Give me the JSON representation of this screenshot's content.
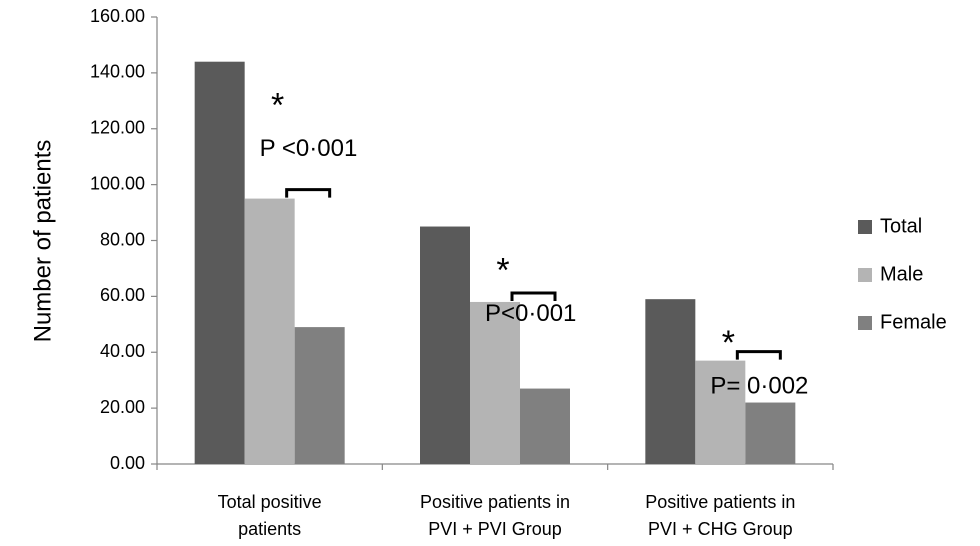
{
  "chart_data": {
    "type": "bar",
    "ylabel": "Number of patients",
    "xlabel": "",
    "ylim": [
      0,
      160
    ],
    "yticks": [
      "0.00",
      "20.00",
      "40.00",
      "60.00",
      "80.00",
      "100.00",
      "120.00",
      "140.00",
      "160.00"
    ],
    "categories": [
      [
        "Total positive",
        "patients"
      ],
      [
        "Positive patients in",
        "PVI + PVI Group"
      ],
      [
        "Positive patients in",
        "PVI + CHG Group"
      ]
    ],
    "series": [
      {
        "name": "Total",
        "color": "#5a5a5a",
        "values": [
          144,
          85,
          59
        ]
      },
      {
        "name": "Male",
        "color": "#b4b4b4",
        "values": [
          95,
          58,
          37
        ]
      },
      {
        "name": "Female",
        "color": "#808080",
        "values": [
          49,
          27,
          22
        ]
      }
    ],
    "legend_position": "right",
    "grid": false,
    "annotations": [
      {
        "marker": "*",
        "p_value": "P <0·001"
      },
      {
        "marker": "*",
        "p_value": "P<0·001"
      },
      {
        "marker": "*",
        "p_value": "P= 0·002"
      }
    ]
  }
}
